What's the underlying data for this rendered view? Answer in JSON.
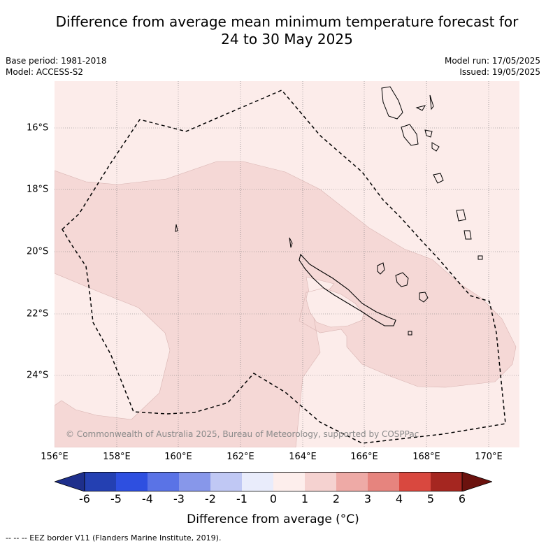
{
  "title_line1": "Difference from average mean minimum temperature forecast for",
  "title_line2": "24 to 30 May 2025",
  "base_period": "Base period: 1981-2018",
  "model": "Model: ACCESS-S2",
  "model_run": "Model run: 17/05/2025",
  "issued": "Issued: 19/05/2025",
  "lat_labels": [
    "16°S",
    "18°S",
    "20°S",
    "22°S",
    "24°S"
  ],
  "lon_labels": [
    "156°E",
    "158°E",
    "160°E",
    "162°E",
    "164°E",
    "166°E",
    "168°E",
    "170°E"
  ],
  "colorbar_ticks": [
    "-6",
    "-5",
    "-4",
    "-3",
    "-2",
    "-1",
    "0",
    "1",
    "2",
    "3",
    "4",
    "5",
    "6"
  ],
  "colorbar_colors": [
    "#1e2f8c",
    "#2440b2",
    "#2e4fe0",
    "#5a73e6",
    "#8797ea",
    "#c0c8f4",
    "#e9ecfb",
    "#fdeeec",
    "#f5d2d0",
    "#eeaaa6",
    "#e6847e",
    "#d9483f",
    "#a52620",
    "#6b120e"
  ],
  "colorbar_title": "Difference from average (°C)",
  "copyright": "© Commonwealth of Australia 2025, Bureau of Meteorology, supported by COSPPac",
  "footer": "-- -- -- EEZ border V11 (Flanders Marine Institute, 2019).",
  "anomaly_classes": {
    "background": "0 to 1",
    "shaded": "1 to 2"
  }
}
